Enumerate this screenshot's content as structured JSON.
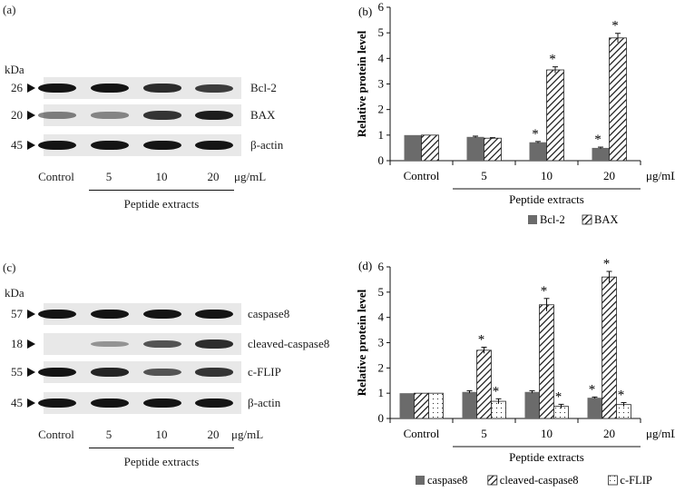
{
  "panel_a": {
    "label": "(a)",
    "kda": "kDa",
    "rows": [
      {
        "mw": "26",
        "name": "Bcl-2",
        "intensity": [
          1.0,
          1.0,
          0.85,
          0.75
        ]
      },
      {
        "mw": "20",
        "name": "BAX",
        "intensity": [
          0.35,
          0.3,
          0.8,
          0.95
        ]
      },
      {
        "mw": "45",
        "name": "β-actin",
        "intensity": [
          1.0,
          1.0,
          1.0,
          1.0
        ]
      }
    ],
    "lanes": [
      "Control",
      "5",
      "10",
      "20"
    ],
    "unit": "μg/mL",
    "group": "Peptide extracts"
  },
  "panel_c": {
    "label": "(c)",
    "kda": "kDa",
    "rows": [
      {
        "mw": "57",
        "name": "caspase8",
        "intensity": [
          1.0,
          1.0,
          1.0,
          1.0
        ]
      },
      {
        "mw": "18",
        "name": "cleaved-caspase8",
        "intensity": [
          0.0,
          0.2,
          0.6,
          0.85
        ]
      },
      {
        "mw": "55",
        "name": "c-FLIP",
        "intensity": [
          1.0,
          0.9,
          0.6,
          0.8
        ]
      },
      {
        "mw": "45",
        "name": "β-actin",
        "intensity": [
          1.0,
          1.0,
          1.0,
          1.0
        ]
      }
    ],
    "lanes": [
      "Control",
      "5",
      "10",
      "20"
    ],
    "unit": "μg/mL",
    "group": "Peptide extracts"
  },
  "chart_data": [
    {
      "panel": "(b)",
      "type": "bar",
      "categories": [
        "Control",
        "5",
        "10",
        "20"
      ],
      "unit_label": "μg/mL",
      "group_label": "Peptide extracts",
      "ylabel": "Relative protein level",
      "ylim": [
        0,
        6
      ],
      "yticks": [
        0,
        1,
        2,
        3,
        4,
        5,
        6
      ],
      "legend_position": "bottom",
      "series": [
        {
          "name": "Bcl-2",
          "style": "solid",
          "color": "#6b6b6b",
          "values": [
            1.0,
            0.93,
            0.72,
            0.5
          ],
          "errors": [
            0,
            0.03,
            0.03,
            0.03
          ],
          "marks": [
            "",
            "",
            "*",
            "*"
          ]
        },
        {
          "name": "BAX",
          "style": "hatched",
          "color": "#333333",
          "values": [
            1.0,
            0.88,
            3.55,
            4.8
          ],
          "errors": [
            0,
            0.02,
            0.12,
            0.18
          ],
          "marks": [
            "",
            "",
            "*",
            "*"
          ]
        }
      ]
    },
    {
      "panel": "(d)",
      "type": "bar",
      "categories": [
        "Control",
        "5",
        "10",
        "20"
      ],
      "unit_label": "μg/mL",
      "group_label": "Peptide extracts",
      "ylabel": "Relative protein level",
      "ylim": [
        0,
        6
      ],
      "yticks": [
        0,
        1,
        2,
        3,
        4,
        5,
        6
      ],
      "legend_position": "bottom",
      "series": [
        {
          "name": "caspase8",
          "style": "solid",
          "color": "#6b6b6b",
          "values": [
            1.0,
            1.05,
            1.05,
            0.82
          ],
          "errors": [
            0,
            0.05,
            0.05,
            0.03
          ],
          "marks": [
            "",
            "",
            "",
            "*"
          ]
        },
        {
          "name": "cleaved-caspase8",
          "style": "hatched",
          "color": "#333333",
          "values": [
            1.0,
            2.7,
            4.5,
            5.6
          ],
          "errors": [
            0,
            0.12,
            0.25,
            0.22
          ],
          "marks": [
            "",
            "*",
            "*",
            "*"
          ]
        },
        {
          "name": "c-FLIP",
          "style": "dotted",
          "color": "#ffffff",
          "values": [
            1.0,
            0.68,
            0.48,
            0.55
          ],
          "errors": [
            0,
            0.1,
            0.08,
            0.08
          ],
          "marks": [
            "",
            "*",
            "*",
            "*"
          ]
        }
      ]
    }
  ]
}
